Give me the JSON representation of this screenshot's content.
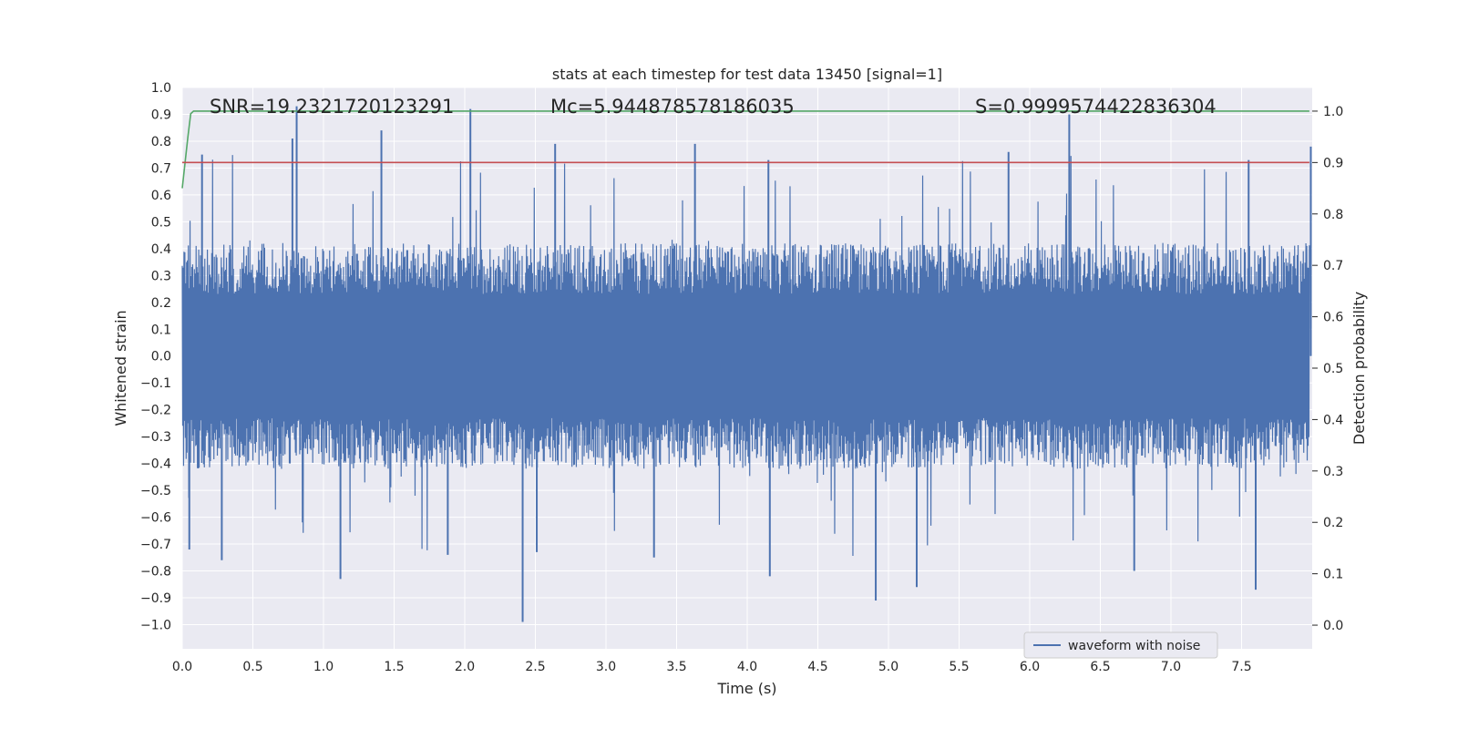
{
  "chart_data": {
    "type": "line",
    "title": "stats at each timestep for test data 13450 [signal=1]",
    "xlabel": "Time (s)",
    "ylabel": "Whitened strain",
    "y2label": "Detection probability",
    "xlim": [
      0.0,
      8.0
    ],
    "ylim": [
      -1.09,
      1.0
    ],
    "y2lim": [
      -0.046,
      1.046
    ],
    "x_ticks": [
      0.0,
      0.5,
      1.0,
      1.5,
      2.0,
      2.5,
      3.0,
      3.5,
      4.0,
      4.5,
      5.0,
      5.5,
      6.0,
      6.5,
      7.0,
      7.5
    ],
    "y_ticks": [
      1.0,
      0.9,
      0.8,
      0.7,
      0.6,
      0.5,
      0.4,
      0.3,
      0.2,
      0.1,
      0.0,
      -0.1,
      -0.2,
      -0.3,
      -0.4,
      -0.5,
      -0.6,
      -0.7,
      -0.8,
      -0.9,
      -1.0
    ],
    "y2_ticks": [
      1.0,
      0.9,
      0.8,
      0.7,
      0.6,
      0.5,
      0.4,
      0.3,
      0.2,
      0.1,
      0.0
    ],
    "grid": true,
    "legend_position": "bottom-right",
    "annotations": [
      {
        "text": "SNR=19.2321720123291"
      },
      {
        "text": "Mc=5.944878578186035"
      },
      {
        "text": "S=0.9999574422836304"
      }
    ],
    "series": [
      {
        "name": "waveform with noise",
        "axis": "left",
        "color": "#4c72b0",
        "x_range": [
          0.0,
          7.98
        ],
        "typical_envelope": [
          -0.42,
          0.42
        ],
        "peaks": [
          {
            "x": 0.81,
            "y": 0.93
          },
          {
            "x": 2.04,
            "y": 0.92
          },
          {
            "x": 6.28,
            "y": 0.9
          },
          {
            "x": 0.78,
            "y": 0.81
          },
          {
            "x": 1.41,
            "y": 0.84
          },
          {
            "x": 2.64,
            "y": 0.79
          },
          {
            "x": 3.63,
            "y": 0.79
          },
          {
            "x": 7.99,
            "y": 0.78
          },
          {
            "x": 0.14,
            "y": 0.75
          },
          {
            "x": 4.15,
            "y": 0.73
          },
          {
            "x": 5.85,
            "y": 0.76
          },
          {
            "x": 7.55,
            "y": 0.73
          }
        ],
        "troughs": [
          {
            "x": 2.41,
            "y": -0.99
          },
          {
            "x": 4.91,
            "y": -0.91
          },
          {
            "x": 1.12,
            "y": -0.83
          },
          {
            "x": 4.16,
            "y": -0.82
          },
          {
            "x": 6.74,
            "y": -0.8
          },
          {
            "x": 7.6,
            "y": -0.87
          },
          {
            "x": 5.2,
            "y": -0.86
          },
          {
            "x": 0.28,
            "y": -0.76
          },
          {
            "x": 2.51,
            "y": -0.73
          },
          {
            "x": 3.34,
            "y": -0.75
          },
          {
            "x": 1.88,
            "y": -0.74
          },
          {
            "x": 0.05,
            "y": -0.72
          }
        ]
      },
      {
        "name": "",
        "axis": "right",
        "color": "#55a868",
        "x": [
          0.0,
          0.02,
          0.04,
          0.06,
          0.08,
          0.12,
          0.5,
          7.98
        ],
        "values": [
          0.85,
          0.9,
          0.95,
          0.995,
          1.0,
          1.0,
          1.0,
          1.0
        ]
      },
      {
        "name": "",
        "axis": "right",
        "color": "#c44e52",
        "x": [
          0.0,
          7.98
        ],
        "values": [
          0.9,
          0.9
        ]
      }
    ]
  }
}
